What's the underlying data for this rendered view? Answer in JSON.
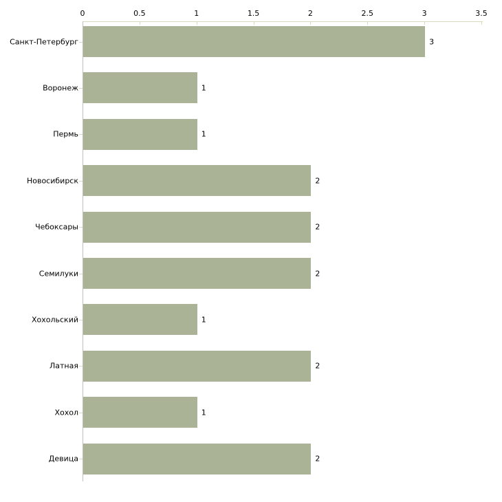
{
  "page": {
    "background": "#FFFFFF"
  },
  "chart_data": {
    "type": "bar",
    "orientation": "horizontal",
    "title": "",
    "xlabel": "",
    "ylabel": "",
    "categories": [
      "Санкт-Петербург",
      "Воронеж",
      "Пермь",
      "Новосибирск",
      "Чебоксары",
      "Семилуки",
      "Хохольский",
      "Латная",
      "Хохол",
      "Девица"
    ],
    "values": [
      3,
      1,
      1,
      2,
      2,
      2,
      1,
      2,
      1,
      2
    ],
    "bar_value_labels": [
      "3",
      "1",
      "1",
      "2",
      "2",
      "2",
      "1",
      "2",
      "1",
      "2"
    ],
    "x_ticks": [
      0,
      0.5,
      1,
      1.5,
      2,
      2.5,
      3,
      3.5
    ],
    "x_tick_labels": [
      "0",
      "0.5",
      "1",
      "1.5",
      "2",
      "2.5",
      "3",
      "3.5"
    ],
    "xlim": [
      0,
      3.5
    ],
    "x_axis_position": "top",
    "grid": false,
    "legend": "none",
    "colors": {
      "bar": "#ABB396",
      "axis_line": "#D6DABF",
      "category_axis_line": "#BEBEBE",
      "label_text": "#000000",
      "background": "#FFFFFF"
    }
  }
}
